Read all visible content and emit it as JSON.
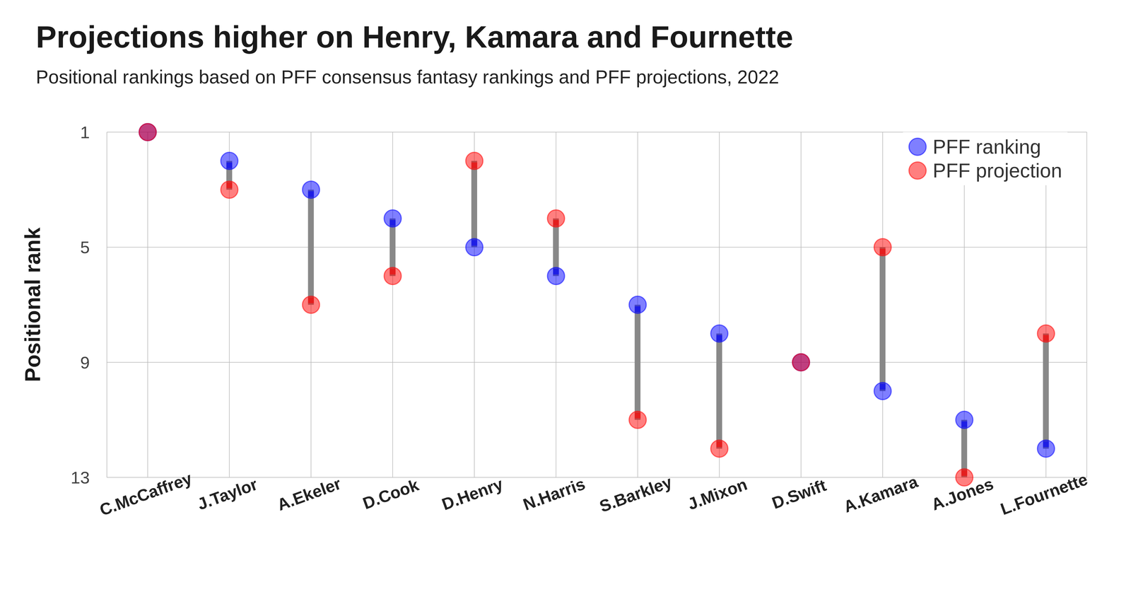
{
  "chart_data": {
    "type": "dumbbell",
    "title": "Projections higher on Henry, Kamara and Fournette",
    "subtitle": "Positional rankings based on PFF consensus fantasy rankings and PFF projections, 2022",
    "y_label": "Positional rank",
    "categories": [
      "C.McCaffrey",
      "J.Taylor",
      "A.Ekeler",
      "D.Cook",
      "D.Henry",
      "N.Harris",
      "S.Barkley",
      "J.Mixon",
      "D.Swift",
      "A.Kamara",
      "A.Jones",
      "L.Fournette"
    ],
    "series": [
      {
        "name": "PFF ranking",
        "color": "#0000ff",
        "marker": "circle",
        "values": [
          1,
          2,
          3,
          4,
          5,
          6,
          7,
          8,
          9,
          10,
          11,
          12
        ]
      },
      {
        "name": "PFF projection",
        "color": "#ff0000",
        "marker": "circle",
        "values": [
          1,
          3,
          7,
          6,
          2,
          4,
          11,
          12,
          9,
          5,
          13,
          8
        ]
      }
    ],
    "ylim": [
      1,
      13
    ],
    "yticks": [
      1,
      5,
      9,
      13
    ],
    "grid": true,
    "legend": "top-right"
  }
}
